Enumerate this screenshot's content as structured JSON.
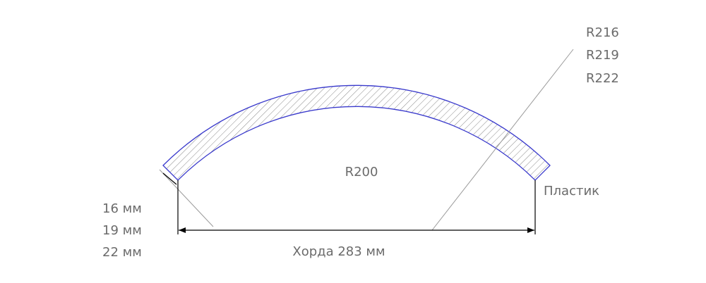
{
  "radii": {
    "outer": [
      "R216",
      "R219",
      "R222"
    ],
    "inner": "R200"
  },
  "material": "Пластик",
  "thickness": [
    "16 мм",
    "19 мм",
    "22 мм"
  ],
  "chord": "Хорда 283 мм"
}
